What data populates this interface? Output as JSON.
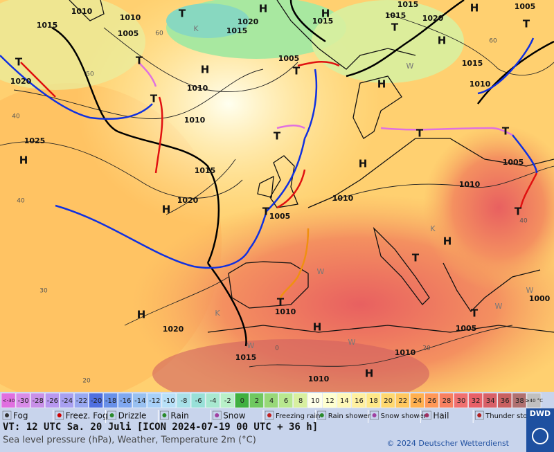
{
  "map": {
    "pressure_labels": [
      "1010",
      "1010",
      "1015",
      "1005",
      "1020",
      "1015",
      "1015",
      "1015",
      "1015",
      "1020",
      "1005",
      "1015",
      "1010",
      "1005",
      "1010",
      "1010",
      "1020",
      "1025",
      "1015",
      "1020",
      "1010",
      "1005",
      "1010",
      "1005",
      "1000",
      "1010",
      "1020",
      "1005",
      "1015",
      "1010",
      "1010"
    ],
    "systems": [
      "H",
      "H",
      "H",
      "H",
      "H",
      "H",
      "H",
      "H",
      "H",
      "H",
      "H",
      "H",
      "H",
      "T",
      "T",
      "T",
      "T",
      "T",
      "T",
      "T",
      "T",
      "T",
      "T",
      "T",
      "T",
      "T",
      "T",
      "T"
    ],
    "isotherm_labels": [
      "60",
      "60",
      "50",
      "40",
      "40",
      "40",
      "30",
      "20",
      "20",
      "0"
    ],
    "air_mass_labels": [
      "K",
      "W",
      "K",
      "W",
      "W",
      "W",
      "K",
      "W",
      "W"
    ]
  },
  "temperature_scale": [
    {
      "label": "<-30",
      "color": "#e070e0"
    },
    {
      "label": "-30",
      "color": "#d88ce8"
    },
    {
      "label": "-28",
      "color": "#c890e8"
    },
    {
      "label": "-26",
      "color": "#b898f0"
    },
    {
      "label": "-24",
      "color": "#a8a0f0"
    },
    {
      "label": "-22",
      "color": "#98a8f0"
    },
    {
      "label": "-20",
      "color": "#5070e0"
    },
    {
      "label": "-18",
      "color": "#6890e8"
    },
    {
      "label": "-16",
      "color": "#80a8f0"
    },
    {
      "label": "-14",
      "color": "#98c0f0"
    },
    {
      "label": "-12",
      "color": "#a8d0f8"
    },
    {
      "label": "-10",
      "color": "#b8e0f8"
    },
    {
      "label": "-8",
      "color": "#a8e0e8"
    },
    {
      "label": "-6",
      "color": "#98e0d8"
    },
    {
      "label": "-4",
      "color": "#a8e8d0"
    },
    {
      "label": "-2",
      "color": "#b8f0c8"
    },
    {
      "label": "0",
      "color": "#40b040"
    },
    {
      "label": "2",
      "color": "#70c860"
    },
    {
      "label": "4",
      "color": "#98d878"
    },
    {
      "label": "6",
      "color": "#b8e890"
    },
    {
      "label": "8",
      "color": "#d8f0a0"
    },
    {
      "label": "10",
      "color": "#ffffe8"
    },
    {
      "label": "12",
      "color": "#ffffd0"
    },
    {
      "label": "14",
      "color": "#fff8b8"
    },
    {
      "label": "16",
      "color": "#fff0a0"
    },
    {
      "label": "18",
      "color": "#ffe888"
    },
    {
      "label": "20",
      "color": "#ffd870"
    },
    {
      "label": "22",
      "color": "#ffc860"
    },
    {
      "label": "24",
      "color": "#ffb050"
    },
    {
      "label": "26",
      "color": "#ff9858"
    },
    {
      "label": "28",
      "color": "#f88060"
    },
    {
      "label": "30",
      "color": "#f07070"
    },
    {
      "label": "32",
      "color": "#e86068"
    },
    {
      "label": "34",
      "color": "#d86068"
    },
    {
      "label": "36",
      "color": "#c86060"
    },
    {
      "label": "38",
      "color": "#b07070"
    },
    {
      "label": "≥40 °C",
      "color": "#c0c0c0"
    }
  ],
  "weather_legend": [
    "Fog",
    "Freez. Fog",
    "Drizzle",
    "Rain",
    "Snow",
    "Freezing rain",
    "Rain shower",
    "Snow shower",
    "Hail",
    "Thunder storm"
  ],
  "footer": {
    "valid_time": "VT: 12 UTC Sa.  20 Juli [ICON 2024-07-19  00 UTC + 36 h]",
    "description": "Sea level pressure (hPa), Weather, Temperature 2m (°C)",
    "copyright": "© 2024 Deutscher Wetterdienst",
    "logo": "DWD"
  }
}
